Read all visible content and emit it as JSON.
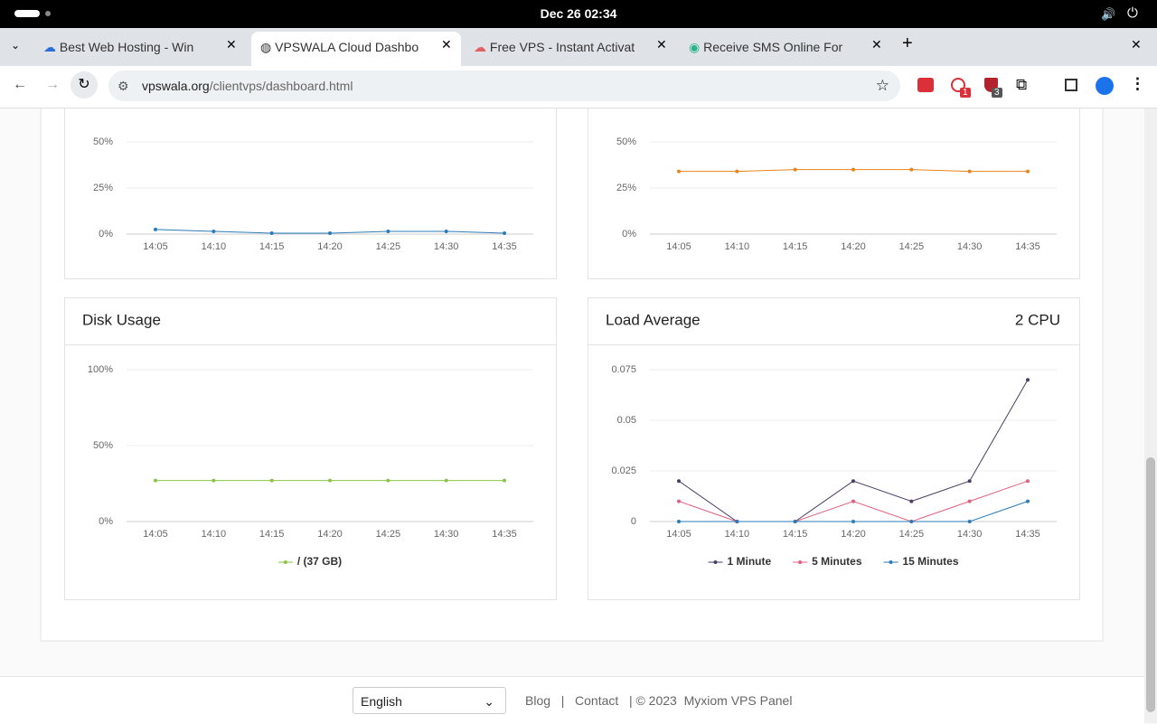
{
  "system_bar": {
    "clock": "Dec 26  02:34"
  },
  "browser": {
    "tabs": [
      "Best Web Hosting - Win",
      "VPSWALA Cloud Dashbo",
      "Free VPS - Instant Activat",
      "Receive SMS Online For"
    ],
    "url_host": "vpswala.org",
    "url_path": "/clientvps/dashboard.html",
    "extension_badges": [
      "1",
      "3"
    ]
  },
  "chart_data": [
    {
      "type": "line",
      "categories": [
        "14:05",
        "14:10",
        "14:15",
        "14:20",
        "14:25",
        "14:30",
        "14:35"
      ],
      "values": [
        2.5,
        1.5,
        0.5,
        0.5,
        1.5,
        1.5,
        0.5
      ],
      "color": "#2b7bb9",
      "ylim": [
        0,
        50
      ],
      "yticks": [
        {
          "value": 0,
          "label": "0%"
        },
        {
          "value": 25,
          "label": "25%"
        },
        {
          "value": 50,
          "label": "50%"
        }
      ],
      "grid": true
    },
    {
      "type": "line",
      "categories": [
        "14:05",
        "14:10",
        "14:15",
        "14:20",
        "14:25",
        "14:30",
        "14:35"
      ],
      "values": [
        34,
        34,
        35,
        35,
        35,
        34,
        34
      ],
      "color": "#e8841c",
      "ylim": [
        0,
        50
      ],
      "yticks": [
        {
          "value": 0,
          "label": "0%"
        },
        {
          "value": 25,
          "label": "25%"
        },
        {
          "value": 50,
          "label": "50%"
        }
      ],
      "grid": true
    },
    {
      "type": "line",
      "title": "Disk Usage",
      "categories": [
        "14:05",
        "14:10",
        "14:15",
        "14:20",
        "14:25",
        "14:30",
        "14:35"
      ],
      "series": [
        {
          "name": "/ (37 GB)",
          "color": "#8bc34a",
          "values": [
            27,
            27,
            27,
            27,
            27,
            27,
            27
          ]
        }
      ],
      "ylim": [
        0,
        100
      ],
      "yticks": [
        {
          "value": 0,
          "label": "0%"
        },
        {
          "value": 50,
          "label": "50%"
        },
        {
          "value": 100,
          "label": "100%"
        }
      ],
      "grid": true,
      "legend": "bottom"
    },
    {
      "type": "line",
      "title": "Load Average",
      "annotation": "2 CPU",
      "categories": [
        "14:05",
        "14:10",
        "14:15",
        "14:20",
        "14:25",
        "14:30",
        "14:35"
      ],
      "series": [
        {
          "name": "1 Minute",
          "color": "#4b3d66",
          "values": [
            0.02,
            0,
            0,
            0.02,
            0.01,
            0.02,
            0.07
          ]
        },
        {
          "name": "5 Minutes",
          "color": "#e0607e",
          "values": [
            0.01,
            0,
            0,
            0.01,
            0,
            0.01,
            0.02
          ]
        },
        {
          "name": "15 Minutes",
          "color": "#2b7bb9",
          "values": [
            0,
            0,
            0,
            0,
            0,
            0,
            0.01
          ]
        }
      ],
      "ylim": [
        0,
        0.075
      ],
      "yticks": [
        0,
        0.025,
        0.05,
        0.075
      ],
      "grid": true,
      "legend": "bottom"
    }
  ],
  "footer": {
    "language": "English",
    "links": [
      "Blog",
      "Contact"
    ],
    "separator": "|",
    "copyright": "© 2023",
    "brand": "Myxiom VPS Panel"
  }
}
